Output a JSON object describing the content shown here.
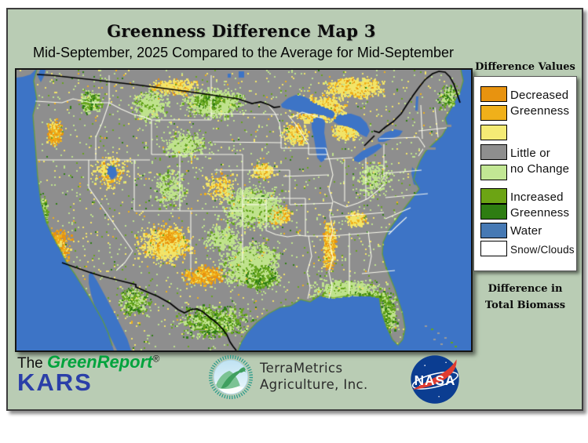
{
  "header": {
    "title": "Greenness Difference Map 3",
    "subtitle": "Mid-September, 2025 Compared to the Average for Mid-September"
  },
  "legend": {
    "title": "Difference Values",
    "swatches": [
      {
        "name": "decreased-strong",
        "color": "#E8930F"
      },
      {
        "name": "decreased-moderate",
        "color": "#F0B01A"
      },
      {
        "name": "decreased-slight",
        "color": "#F4EB75"
      },
      {
        "name": "no-change",
        "color": "#8E8E8E"
      },
      {
        "name": "increased-slight",
        "color": "#C2E794"
      },
      {
        "name": "increased-moderate",
        "color": "#6CA414"
      },
      {
        "name": "increased-strong",
        "color": "#2E7D12"
      },
      {
        "name": "water",
        "color": "#4679B4"
      },
      {
        "name": "snow-clouds",
        "color": "#FFFFFF"
      }
    ],
    "labels": {
      "decreased": [
        "Decreased",
        "Greenness"
      ],
      "no_change": [
        "Little or",
        "no Change"
      ],
      "increased": [
        "Increased",
        "Greenness"
      ],
      "water": [
        "Water"
      ],
      "snow": [
        "Snow/Clouds"
      ]
    }
  },
  "sidebar_note": [
    "Difference in",
    "Total Biomass"
  ],
  "map": {
    "region": "Continental United States greenness difference raster",
    "colors": {
      "ocean": "#3D74C6",
      "land": "#8E8E8E",
      "state_border": "#FFFFF2",
      "country_border": "#000000",
      "decreased_strong": "#E8930F",
      "decreased": "#F0B01A",
      "decreased_slight": "#F2E468",
      "increased_slight": "#BFE28C",
      "increased": "#66A51C",
      "increased_strong": "#2E7D14"
    }
  },
  "footer": {
    "greenreport_the": "The",
    "greenreport_name": "GreenReport",
    "greenreport_reg": "®",
    "kars": "KARS",
    "terrametrics_line1": "TerraMetrics",
    "terrametrics_line2": "Agriculture, Inc.",
    "nasa": "NASA"
  }
}
